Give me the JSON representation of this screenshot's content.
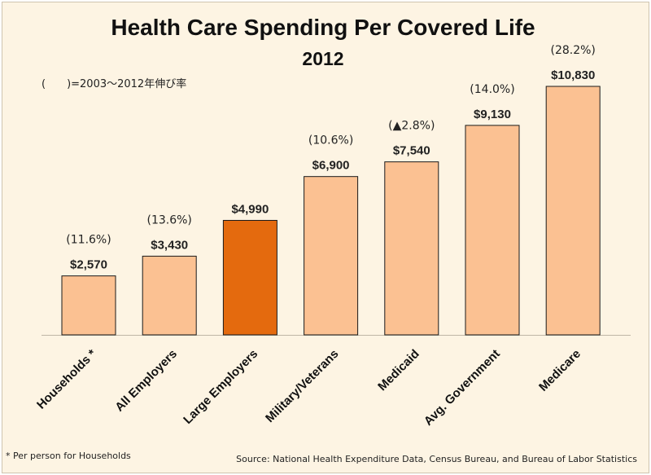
{
  "chart_data": {
    "type": "bar",
    "title": "Health Care Spending Per Covered Life",
    "subtitle": "2012",
    "note": "(　　)=2003～2012年伸び率",
    "categories": [
      "Households *",
      "All Employers",
      "Large Employers",
      "Military/Veterans",
      "Medicaid",
      "Avg. Government",
      "Medicare"
    ],
    "values": [
      2570,
      3430,
      4990,
      6900,
      7540,
      9130,
      10830
    ],
    "value_labels": [
      "$2,570",
      "$3,430",
      "$4,990",
      "$6,900",
      "$7,540",
      "$9,130",
      "$10,830"
    ],
    "growth_labels": [
      "(11.6%)",
      "(13.6%)",
      "",
      "(10.6%)",
      "(▲2.8%)",
      "(14.0%)",
      "(28.2%)"
    ],
    "highlight_index": 2,
    "ylim": [
      0,
      10830
    ],
    "grid": false,
    "xlabel": "",
    "ylabel": "",
    "footnote": "* Per person for Households",
    "source": "Source: National Health Expenditure Data, Census Bureau, and Bureau of Labor Statistics"
  },
  "colors": {
    "bar": "#fbc192",
    "bar_highlight": "#e46a0e",
    "bar_stroke": "#1a1a1a",
    "background": "#fdf4e3"
  }
}
